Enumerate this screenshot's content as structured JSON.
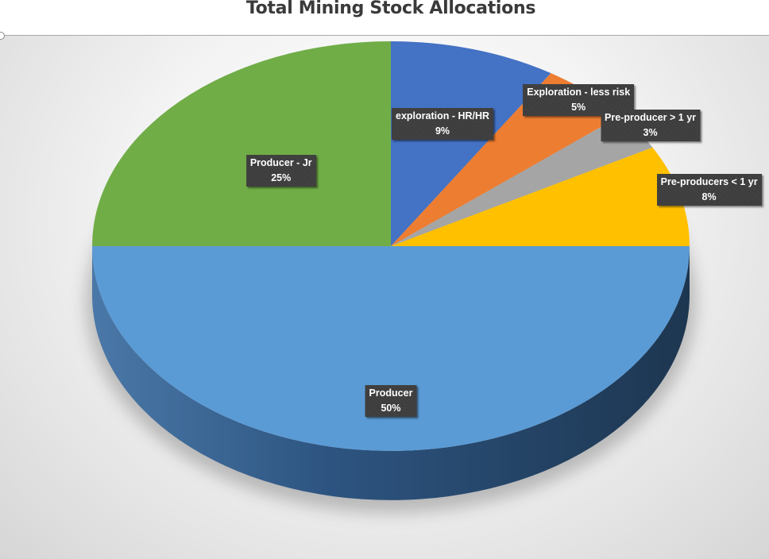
{
  "chart_data": {
    "type": "pie",
    "title": "Total Mining Stock Allocations",
    "slices": [
      {
        "name": "exploration - HR/HR",
        "value": 9,
        "label": "9%",
        "color": "#4472C4"
      },
      {
        "name": "Exploration - less risk",
        "value": 5,
        "label": "5%",
        "color": "#ED7D31"
      },
      {
        "name": "Pre-producer > 1 yr",
        "value": 3,
        "label": "3%",
        "color": "#A5A5A5"
      },
      {
        "name": "Pre-producers < 1 yr",
        "value": 8,
        "label": "8%",
        "color": "#FFC000"
      },
      {
        "name": "Producer",
        "value": 50,
        "label": "50%",
        "color": "#5B9BD5"
      },
      {
        "name": "Producer - Jr",
        "value": 25,
        "label": "25%",
        "color": "#70AD47"
      }
    ],
    "style": "3d-pie",
    "legend": "none",
    "data_labels": "category-and-percent"
  }
}
